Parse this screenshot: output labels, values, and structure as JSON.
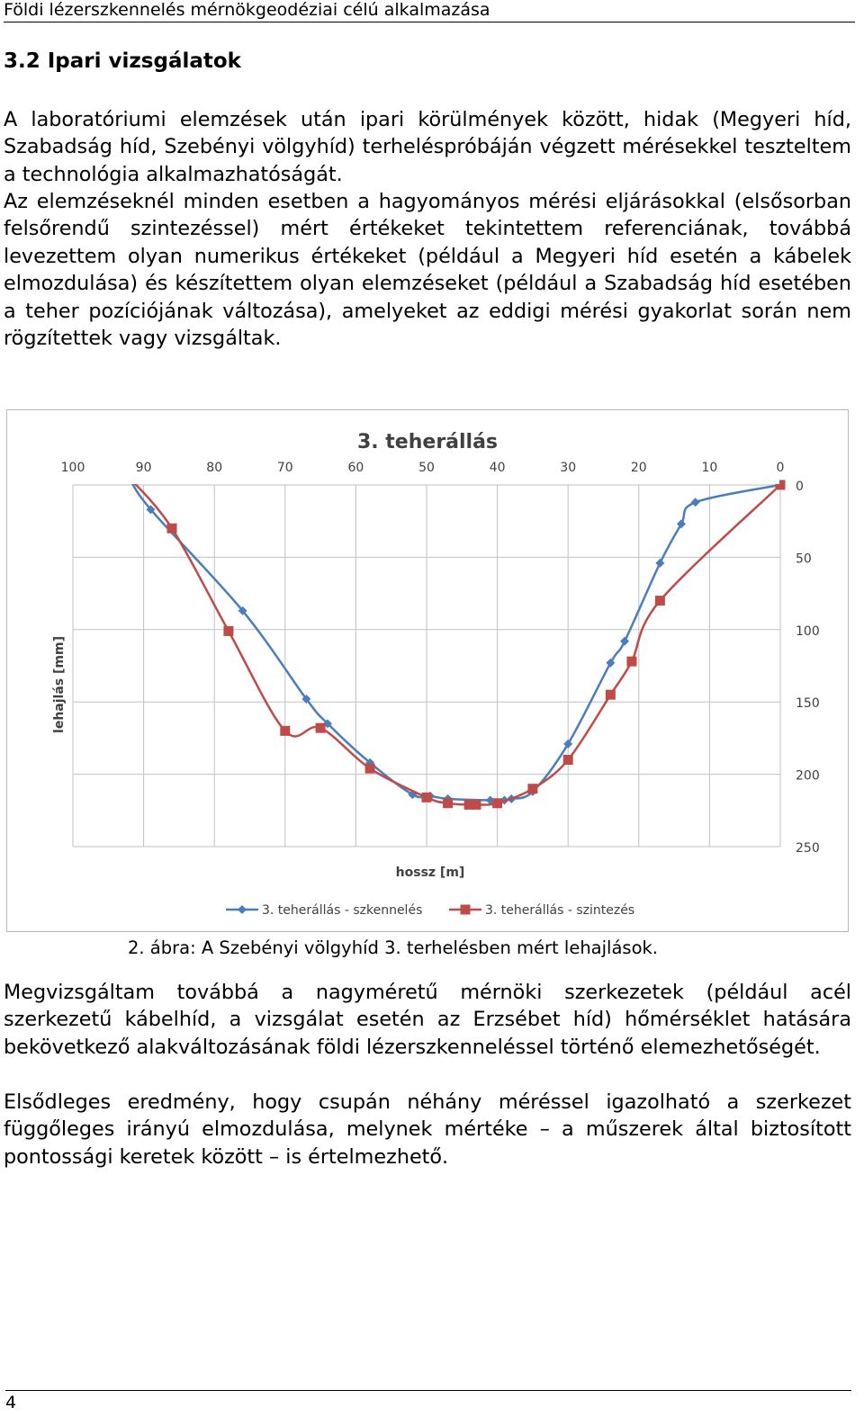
{
  "header": {
    "running_title": "Földi lézerszkennelés mérnökgeodéziai célú alkalmazása"
  },
  "section": {
    "heading": "3.2 Ipari vizsgálatok"
  },
  "paragraphs": {
    "p1": "A laboratóriumi elemzések után ipari körülmények között, hidak (Megyeri híd, Szabadság híd, Szebényi völgyhíd) terheléspróbáján végzett mérésekkel teszteltem a technológia alkalmazhatóságát.",
    "p2": "Az elemzéseknél minden esetben a hagyományos mérési eljárásokkal (elsősorban felsőrendű szintezéssel) mért értékeket tekintettem referenciának, továbbá levezettem olyan numerikus értékeket (például a Megyeri híd esetén a kábelek elmozdulása) és készítettem olyan elemzéseket (például a Szabadság híd esetében a teher pozíciójának változása), amelyeket az eddigi mérési gyakorlat során nem rögzítettek vagy vizsgáltak.",
    "p3": "Megvizsgáltam továbbá a nagyméretű mérnöki szerkezetek (például acél szerkezetű kábelhíd, a vizsgálat esetén az Erzsébet híd) hőmérséklet hatására bekövetkező alakváltozásának földi lézerszkenneléssel történő elemezhetőségét.",
    "p4": "Elsődleges eredmény, hogy csupán néhány méréssel igazolható a szerkezet függőleges irányú elmozdulása, melynek mértéke – a műszerek által biztosított pontossági keretek között – is értelmezhető."
  },
  "figure": {
    "caption": "2. ábra: A Szebényi völgyhíd 3. terhelésben mért lehajlások."
  },
  "chart_data": {
    "type": "line",
    "title": "3. teherállás",
    "xlabel": "hossz [m]",
    "ylabel": "lehajlás [mm]",
    "xlim": [
      100,
      0
    ],
    "ylim": [
      0,
      250
    ],
    "x_reversed": true,
    "y_reversed": true,
    "x_ticks": [
      100,
      90,
      80,
      70,
      60,
      50,
      40,
      30,
      20,
      10,
      0
    ],
    "y_ticks": [
      0,
      50,
      100,
      150,
      200,
      250
    ],
    "grid": true,
    "legend_position": "bottom",
    "series": [
      {
        "name": "3. teherállás - szkennelés",
        "color": "#4a7ebb",
        "marker": "diamond",
        "x": [
          92,
          89,
          76,
          67,
          64,
          58,
          52,
          49.5,
          47,
          41,
          39,
          38,
          35,
          30,
          24,
          22,
          17,
          14,
          12,
          0
        ],
        "y": [
          -5,
          17,
          87,
          148,
          165,
          192,
          214,
          215,
          217,
          218,
          218,
          217,
          212,
          179,
          123,
          108,
          54,
          27,
          12,
          0
        ]
      },
      {
        "name": "3. teherállás - szintezés",
        "color": "#be4b48",
        "marker": "square",
        "x": [
          92,
          86,
          78,
          70,
          65,
          58,
          50,
          47,
          44,
          43,
          40,
          35,
          30,
          24,
          21,
          17,
          0
        ],
        "y": [
          -5,
          30,
          101,
          170,
          168,
          196,
          216,
          220,
          221,
          221,
          220,
          210,
          190,
          145,
          122,
          80,
          0
        ]
      }
    ]
  }
}
